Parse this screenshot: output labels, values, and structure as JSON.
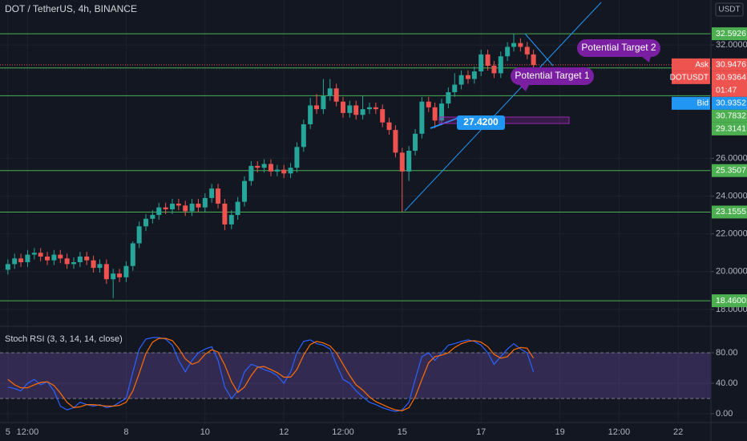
{
  "chart_data": [
    {
      "type": "candlestick",
      "title": "DOT / TetherUS, 4h, BINANCE",
      "currency": "USDT",
      "up_color": "#26a69a",
      "down_color": "#ef5350",
      "level_color": "#4caf50",
      "x": [
        5,
        5.17,
        5.33,
        5.5,
        5.67,
        5.83,
        6,
        6.17,
        6.33,
        6.5,
        6.67,
        6.83,
        7,
        7.17,
        7.33,
        7.5,
        7.67,
        7.83,
        8,
        8.17,
        8.33,
        8.5,
        8.67,
        8.83,
        9,
        9.17,
        9.33,
        9.5,
        9.67,
        9.83,
        10,
        10.17,
        10.33,
        10.5,
        10.67,
        10.83,
        11,
        11.17,
        11.33,
        11.5,
        11.67,
        11.83,
        12,
        12.17,
        12.33,
        12.5,
        12.67,
        12.83,
        13,
        13.17,
        13.33,
        13.5,
        13.67,
        13.83,
        14,
        14.17,
        14.33,
        14.5,
        14.67,
        14.83,
        15,
        15.17,
        15.33,
        15.5,
        15.67,
        15.83,
        16,
        16.17,
        16.33,
        16.5,
        16.67,
        16.83,
        17,
        17.17,
        17.33,
        17.5,
        17.67,
        17.83,
        18,
        18.17,
        18.33
      ],
      "open": [
        20.1,
        20.4,
        20.7,
        20.5,
        20.9,
        21.0,
        20.8,
        20.6,
        20.9,
        20.7,
        20.4,
        20.5,
        20.8,
        20.6,
        20.2,
        20.4,
        19.6,
        19.9,
        19.7,
        20.3,
        21.5,
        22.4,
        22.8,
        23.0,
        23.4,
        23.3,
        23.6,
        23.5,
        23.2,
        23.6,
        23.4,
        23.9,
        24.4,
        23.6,
        22.5,
        23.0,
        23.7,
        24.8,
        25.6,
        25.5,
        25.7,
        25.3,
        25.4,
        25.2,
        25.5,
        26.6,
        27.8,
        28.8,
        28.6,
        29.3,
        29.7,
        29.0,
        28.4,
        28.8,
        28.3,
        28.6,
        28.7,
        28.6,
        27.9,
        27.5,
        26.3,
        25.3,
        26.4,
        27.3,
        29.0,
        28.7,
        28.0,
        28.9,
        29.5,
        29.9,
        30.4,
        30.2,
        30.6,
        31.5,
        30.9,
        30.5,
        31.4,
        31.9,
        32.1,
        31.9,
        31.5
      ],
      "high": [
        20.65,
        20.95,
        20.95,
        21.15,
        21.25,
        21.25,
        21.05,
        21.15,
        21.15,
        20.95,
        20.75,
        21.05,
        21.05,
        20.85,
        20.65,
        20.65,
        20.15,
        20.15,
        20.55,
        21.6,
        22.65,
        23.05,
        23.25,
        23.65,
        23.65,
        23.85,
        23.85,
        23.75,
        23.85,
        23.85,
        24.15,
        24.65,
        24.65,
        23.85,
        23.25,
        23.95,
        25.05,
        25.85,
        25.85,
        25.95,
        25.95,
        25.65,
        25.65,
        25.75,
        26.85,
        28.05,
        29.2,
        29.4,
        30.2,
        30.2,
        29.95,
        29.25,
        29.05,
        29.05,
        29.3,
        28.95,
        28.95,
        28.85,
        28.15,
        27.75,
        26.55,
        26.65,
        27.55,
        29.25,
        29.25,
        28.95,
        29.15,
        29.75,
        30.5,
        30.65,
        30.65,
        30.85,
        31.75,
        31.75,
        31.15,
        31.65,
        32.15,
        32.59,
        32.35,
        32.15,
        31.75
      ],
      "low": [
        19.85,
        20.15,
        20.25,
        20.25,
        20.65,
        20.55,
        20.35,
        20.35,
        20.45,
        20.15,
        20.15,
        20.25,
        20.35,
        19.95,
        19.95,
        19.35,
        18.6,
        19.45,
        19.45,
        20.05,
        21.25,
        22.15,
        22.55,
        22.75,
        23.05,
        23.05,
        23.25,
        22.95,
        22.95,
        23.15,
        23.15,
        23.65,
        23.35,
        22.2,
        22.25,
        22.75,
        23.45,
        24.55,
        25.25,
        25.25,
        25.05,
        25.05,
        24.95,
        24.95,
        25.25,
        26.35,
        27.55,
        28.35,
        28.35,
        29.05,
        28.75,
        28.15,
        28.15,
        28.05,
        28.05,
        28.35,
        28.35,
        27.65,
        27.25,
        26.05,
        23.16,
        24.8,
        26.15,
        27.05,
        28.45,
        27.6,
        27.75,
        28.65,
        29.25,
        29.65,
        29.95,
        29.95,
        30.35,
        30.65,
        30.25,
        30.25,
        31.15,
        31.65,
        31.65,
        31.25,
        30.69
      ],
      "close": [
        20.4,
        20.7,
        20.5,
        20.9,
        21.0,
        20.8,
        20.6,
        20.9,
        20.7,
        20.4,
        20.5,
        20.8,
        20.6,
        20.2,
        20.4,
        19.6,
        19.9,
        19.7,
        20.3,
        21.5,
        22.4,
        22.8,
        23.0,
        23.4,
        23.3,
        23.6,
        23.5,
        23.2,
        23.6,
        23.4,
        23.9,
        24.4,
        23.6,
        22.5,
        23.0,
        23.7,
        24.8,
        25.6,
        25.5,
        25.7,
        25.3,
        25.4,
        25.2,
        25.5,
        26.6,
        27.8,
        28.8,
        28.6,
        29.3,
        29.7,
        29.0,
        28.4,
        28.8,
        28.3,
        28.6,
        28.7,
        28.6,
        27.9,
        27.5,
        26.3,
        25.3,
        26.4,
        27.3,
        29.0,
        28.7,
        28.0,
        28.9,
        29.5,
        29.9,
        30.4,
        30.2,
        30.6,
        31.5,
        30.9,
        30.5,
        31.4,
        31.9,
        32.1,
        31.9,
        31.5,
        30.94
      ],
      "xlim": [
        4.8,
        22.83
      ],
      "ylim": [
        17.19,
        34.38
      ],
      "xticks": [
        {
          "value": 5,
          "label": "5"
        },
        {
          "value": 5.5,
          "label": "12:00"
        },
        {
          "value": 8,
          "label": "8"
        },
        {
          "value": 10,
          "label": "10"
        },
        {
          "value": 12,
          "label": "12"
        },
        {
          "value": 13.5,
          "label": "12:00"
        },
        {
          "value": 15,
          "label": "15"
        },
        {
          "value": 17,
          "label": "17"
        },
        {
          "value": 19,
          "label": "19"
        },
        {
          "value": 20.5,
          "label": "12:00"
        },
        {
          "value": 22,
          "label": "22"
        }
      ],
      "yticks": [
        {
          "value": 18,
          "label": "18.0000"
        },
        {
          "value": 20,
          "label": "20.0000"
        },
        {
          "value": 22,
          "label": "22.0000"
        },
        {
          "value": 24,
          "label": "24.0000"
        },
        {
          "value": 26,
          "label": "26.0000"
        },
        {
          "value": 32,
          "label": "32.0000"
        }
      ],
      "levels": [
        {
          "value": 32.5926,
          "label": "32.5926"
        },
        {
          "value": 30.7832,
          "label": "30.7832"
        },
        {
          "value": 29.3141,
          "label": "29.3141"
        },
        {
          "value": 25.3507,
          "label": "25.3507"
        },
        {
          "value": 23.1555,
          "label": "23.1555"
        },
        {
          "value": 18.46,
          "label": "18.4600"
        }
      ],
      "ask": {
        "name": "Ask",
        "value": 30.9476,
        "label": "30.9476"
      },
      "last": {
        "name": "DOTUSDT",
        "value": 30.9364,
        "label": "30.9364",
        "countdown": "01:47"
      },
      "bid": {
        "name": "Bid",
        "value": 30.9352,
        "label": "30.9352"
      },
      "annotations": [
        "Potential Target 1",
        "Potential Target 2"
      ],
      "price_label": {
        "value": 27.42,
        "label": "27.4200"
      }
    },
    {
      "type": "line",
      "title": "Stoch RSI (3, 3, 14, 14, close)",
      "ylim": [
        -11.6,
        111.6
      ],
      "band": [
        20,
        80
      ],
      "yticks": [
        {
          "value": 0,
          "label": "0.00"
        },
        {
          "value": 40,
          "label": "40.00"
        },
        {
          "value": 80,
          "label": "80.00"
        }
      ],
      "series": [
        {
          "color": "#2962ff",
          "values": [
            35,
            33,
            30,
            40,
            45,
            38,
            42,
            30,
            10,
            5,
            8,
            15,
            12,
            10,
            12,
            8,
            10,
            15,
            20,
            55,
            85,
            98,
            100,
            100,
            98,
            90,
            70,
            55,
            70,
            80,
            85,
            88,
            70,
            35,
            20,
            30,
            55,
            65,
            62,
            58,
            55,
            50,
            40,
            55,
            80,
            95,
            97,
            92,
            90,
            85,
            65,
            45,
            40,
            30,
            22,
            15,
            12,
            8,
            5,
            3,
            5,
            15,
            45,
            75,
            80,
            70,
            80,
            90,
            92,
            95,
            97,
            95,
            90,
            80,
            65,
            75,
            85,
            92,
            85,
            80,
            55
          ]
        },
        {
          "color": "#ff6d00",
          "values": [
            45,
            38,
            34,
            34,
            38,
            41,
            42,
            37,
            27,
            15,
            8,
            9,
            12,
            12,
            11,
            10,
            10,
            11,
            15,
            30,
            53,
            79,
            94,
            99,
            99,
            96,
            86,
            72,
            65,
            68,
            78,
            84,
            81,
            64,
            42,
            28,
            35,
            50,
            61,
            62,
            58,
            54,
            48,
            48,
            58,
            77,
            91,
            95,
            93,
            89,
            80,
            65,
            50,
            38,
            31,
            22,
            16,
            12,
            8,
            5,
            4,
            8,
            22,
            45,
            67,
            75,
            77,
            80,
            87,
            92,
            95,
            96,
            94,
            88,
            78,
            73,
            75,
            84,
            87,
            86,
            73
          ]
        }
      ]
    }
  ]
}
